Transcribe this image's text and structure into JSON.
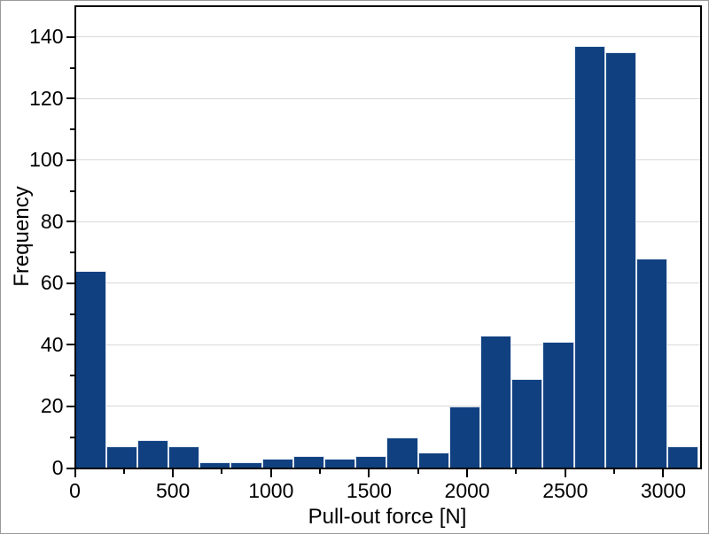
{
  "chart_data": {
    "type": "bar",
    "subtype": "histogram",
    "title": "",
    "xlabel": "Pull-out force [N]",
    "ylabel": "Frequency",
    "bin_start": 0,
    "bin_width": 159,
    "values": [
      64,
      7,
      9,
      7,
      2,
      2,
      3,
      4,
      3,
      4,
      10,
      5,
      20,
      43,
      29,
      41,
      137,
      135,
      68,
      7
    ],
    "total_count": 600,
    "xlim": [
      0,
      3190
    ],
    "ylim": [
      0,
      150
    ],
    "x_major_ticks": [
      0,
      500,
      1000,
      1500,
      2000,
      2500,
      3000
    ],
    "x_minor_ticks": [
      250,
      750,
      1250,
      1750,
      2250,
      2750
    ],
    "y_major_ticks": [
      0,
      20,
      40,
      60,
      80,
      100,
      120,
      140
    ],
    "y_minor_ticks": [
      10,
      30,
      50,
      70,
      90,
      110,
      130
    ],
    "grid": "horizontal-major-only",
    "legend": "none",
    "colors": {
      "bar_fill": "#104080",
      "bar_edge": "#dfe6f0",
      "gridline": "#d9d9d9",
      "axis": "#000000",
      "background": "#ffffff",
      "text": "#000000"
    }
  }
}
